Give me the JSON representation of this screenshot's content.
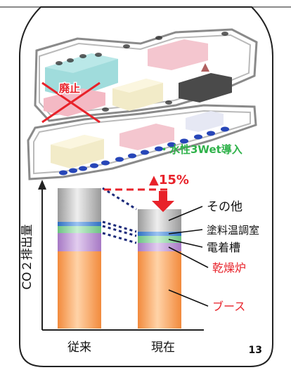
{
  "header": {
    "top_line": true
  },
  "illustration": {
    "abolished_label": "廃止",
    "waterborne_label": "・水性3Wet導入",
    "colors": {
      "abolished": "#e8222a",
      "waterborne": "#2fb24a"
    }
  },
  "chart": {
    "ylabel": "CO２排出量",
    "reduction_label": "▲15%",
    "categories": [
      "従来",
      "現在"
    ],
    "page_number": "13",
    "components": [
      {
        "name": "ブース",
        "color": "#f7a35f",
        "label_color": "#e8222a"
      },
      {
        "name": "乾燥炉",
        "color": "#c39ad6",
        "label_color": "#e8222a"
      },
      {
        "name": "電着槽",
        "color": "#8ed39a",
        "label_color": "#111111"
      },
      {
        "name": "塗料温調室",
        "color": "#4c8ed8",
        "label_color": "#111111"
      },
      {
        "name": "その他",
        "color": "#bdbdbd",
        "label_color": "#111111"
      }
    ]
  },
  "chart_data": {
    "type": "bar",
    "stacked": true,
    "categories": [
      "従来",
      "現在"
    ],
    "ylabel": "CO２排出量",
    "series": [
      {
        "name": "ブース",
        "values": [
          55,
          55
        ]
      },
      {
        "name": "乾燥炉",
        "values": [
          13,
          6
        ]
      },
      {
        "name": "電着槽",
        "values": [
          5,
          5
        ]
      },
      {
        "name": "塗料温調室",
        "values": [
          3,
          3
        ]
      },
      {
        "name": "その他",
        "values": [
          24,
          16
        ]
      }
    ],
    "ylim": [
      0,
      100
    ],
    "annotations": [
      "▲15%"
    ],
    "grid": false
  }
}
